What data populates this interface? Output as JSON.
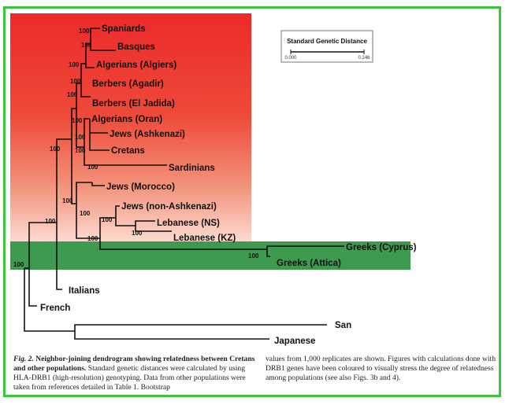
{
  "colors": {
    "frame": "#3bc63b",
    "red_top": "#ec2f2f",
    "red_mid": "#ef6f55",
    "red_bottom": "#fbd6cc",
    "green_band": "#3e9a4e"
  },
  "legend": {
    "title": "Standard Genetic Distance",
    "tick_min": "0.000",
    "tick_max": "0.246"
  },
  "leaves": [
    "Spaniards",
    "Basques",
    "Algerians (Algiers)",
    "Berbers (Agadir)",
    "Berbers (El Jadida)",
    "Algerians (Oran)",
    "Jews (Ashkenazi)",
    "Cretans",
    "Sardinians",
    "Jews (Morocco)",
    "Jews (non-Ashkenazi)",
    "Lebanese (NS)",
    "Lebanese (KZ)",
    "Greeks (Cyprus)",
    "Greeks (Attica)",
    "Italians",
    "French",
    "San",
    "Japanese"
  ],
  "bootstrap": "100",
  "caption": {
    "fig_label": "Fig. 2.",
    "title": "Neighbor-joining dendrogram showing relatedness between Cretans and other populations.",
    "left_body": "Standard genetic distances were calculated by using HLA-DRB1 (high-resolution) genotyping. Data from other populations were taken from references detailed in Table 1. Bootstrap",
    "right_body": "values from 1,000 replicates are shown. Figures with calculations done with DRB1 genes have been coloured to visually stress the degree of relatedness among populations (see also Figs. 3b and 4)."
  }
}
